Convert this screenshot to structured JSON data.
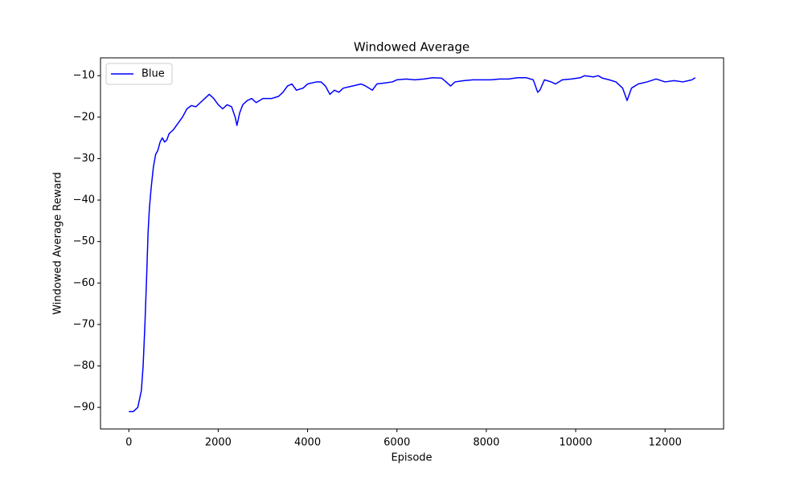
{
  "chart_data": {
    "type": "line",
    "title": "Windowed Average",
    "xlabel": "Episode",
    "ylabel": "Windowed Average Reward",
    "x": [
      0,
      100,
      200,
      280,
      320,
      360,
      400,
      430,
      460,
      500,
      550,
      600,
      650,
      700,
      750,
      800,
      850,
      900,
      950,
      1000,
      1100,
      1200,
      1300,
      1400,
      1500,
      1600,
      1700,
      1800,
      1900,
      2000,
      2100,
      2200,
      2300,
      2380,
      2420,
      2480,
      2550,
      2650,
      2750,
      2850,
      3000,
      3200,
      3350,
      3450,
      3550,
      3650,
      3750,
      3900,
      4000,
      4200,
      4300,
      4400,
      4500,
      4600,
      4700,
      4800,
      5000,
      5200,
      5300,
      5450,
      5550,
      5700,
      5900,
      6000,
      6200,
      6400,
      6600,
      6800,
      7000,
      7100,
      7200,
      7300,
      7500,
      7700,
      7900,
      8100,
      8300,
      8500,
      8700,
      8900,
      9050,
      9150,
      9200,
      9300,
      9450,
      9550,
      9700,
      9900,
      10100,
      10200,
      10400,
      10500,
      10600,
      10750,
      10900,
      11050,
      11150,
      11250,
      11400,
      11600,
      11800,
      12000,
      12200,
      12400,
      12600,
      12676
    ],
    "series": [
      {
        "name": "Blue",
        "color": "#0000ff",
        "values": [
          -91,
          -91,
          -90,
          -86,
          -80,
          -70,
          -58,
          -48,
          -42,
          -37,
          -32,
          -29,
          -28,
          -26,
          -25,
          -26,
          -25.5,
          -24,
          -23.5,
          -23,
          -21.5,
          -20,
          -18,
          -17.2,
          -17.5,
          -16.5,
          -15.5,
          -14.5,
          -15.5,
          -17,
          -18,
          -17,
          -17.5,
          -20,
          -22,
          -19,
          -17,
          -16,
          -15.5,
          -16.5,
          -15.5,
          -15.5,
          -15,
          -14,
          -12.5,
          -12,
          -13.5,
          -13,
          -12,
          -11.5,
          -11.5,
          -12.5,
          -14.5,
          -13.5,
          -14,
          -13,
          -12.5,
          -12,
          -12.5,
          -13.5,
          -12,
          -11.8,
          -11.5,
          -11,
          -10.8,
          -11,
          -10.8,
          -10.5,
          -10.6,
          -11.5,
          -12.5,
          -11.5,
          -11.2,
          -11,
          -11,
          -11,
          -10.8,
          -10.8,
          -10.5,
          -10.5,
          -11,
          -14,
          -13.5,
          -11,
          -11.5,
          -12,
          -11,
          -10.8,
          -10.5,
          -10,
          -10.3,
          -10,
          -10.6,
          -11,
          -11.5,
          -13,
          -16,
          -13,
          -12,
          -11.5,
          -10.8,
          -11.5,
          -11.2,
          -11.5,
          -11,
          -10.5
        ]
      }
    ],
    "xlim": [
      -634,
      13310
    ],
    "ylim": [
      -95.2,
      -5.7
    ],
    "xticks": [
      0,
      2000,
      4000,
      6000,
      8000,
      10000,
      12000
    ],
    "yticks": [
      {
        "value": -90,
        "label": "−90"
      },
      {
        "value": -80,
        "label": "−80"
      },
      {
        "value": -70,
        "label": "−70"
      },
      {
        "value": -60,
        "label": "−60"
      },
      {
        "value": -50,
        "label": "−50"
      },
      {
        "value": -40,
        "label": "−40"
      },
      {
        "value": -30,
        "label": "−30"
      },
      {
        "value": -20,
        "label": "−20"
      },
      {
        "value": -10,
        "label": "−10"
      }
    ],
    "legend": "upper left"
  }
}
